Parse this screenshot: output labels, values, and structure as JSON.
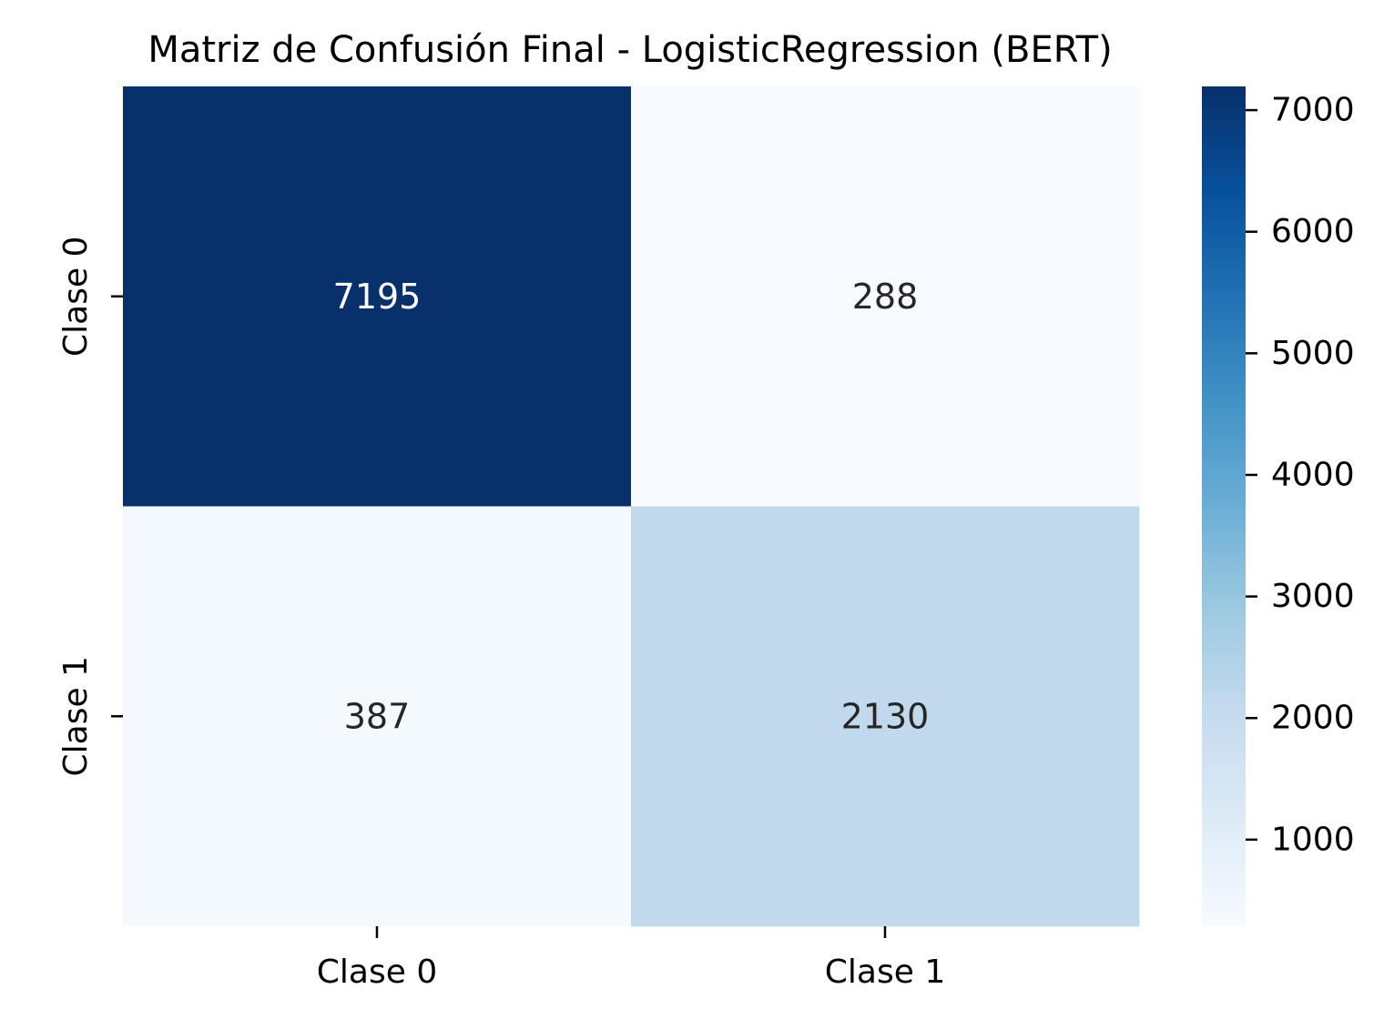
{
  "chart_data": {
    "type": "heatmap",
    "title": "Matriz de Confusión Final - LogisticRegression (BERT)",
    "xlabel": "",
    "ylabel": "",
    "x_categories": [
      "Clase 0",
      "Clase 1"
    ],
    "y_categories": [
      "Clase 0",
      "Clase 1"
    ],
    "values": [
      [
        7195,
        288
      ],
      [
        387,
        2130
      ]
    ],
    "colormap": "Blues",
    "colorbar": {
      "vmin": 288,
      "vmax": 7195,
      "ticks": [
        1000,
        2000,
        3000,
        4000,
        5000,
        6000,
        7000
      ]
    },
    "annotation_colors": {
      "dark": "#262626",
      "light": "#ffffff"
    }
  }
}
